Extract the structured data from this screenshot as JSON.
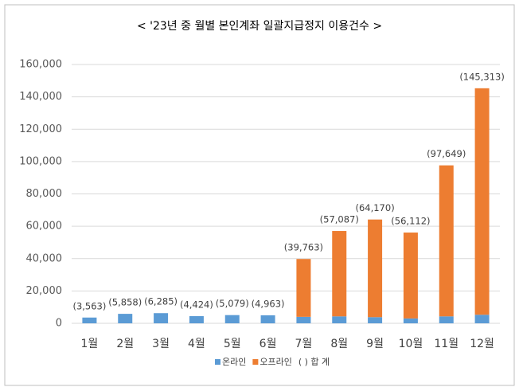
{
  "chart_data": {
    "type": "stacked-bar",
    "title": "< '23년 중 월별 본인계좌 일괄지급정지 이용건수 >",
    "categories": [
      "1월",
      "2월",
      "3월",
      "4월",
      "5월",
      "6월",
      "7월",
      "8월",
      "9월",
      "10월",
      "11월",
      "12월"
    ],
    "series": [
      {
        "name": "온라인",
        "color": "#5b9bd5",
        "values": [
          3563,
          5858,
          6285,
          4424,
          5079,
          4963,
          4000,
          4300,
          3800,
          3000,
          4300,
          5300
        ]
      },
      {
        "name": "오프라인",
        "color": "#ed7d31",
        "values": [
          0,
          0,
          0,
          0,
          0,
          0,
          35763,
          52787,
          60370,
          53112,
          93349,
          140013
        ]
      }
    ],
    "totals": {
      "name": "( ) 합 계",
      "values": [
        3563,
        5858,
        6285,
        4424,
        5079,
        4963,
        39763,
        57087,
        64170,
        56112,
        97649,
        145313
      ],
      "value_labels": [
        "(3,563)",
        "(5,858)",
        "(6,285)",
        "(4,424)",
        "(5,079)",
        "(4,963)",
        "(39,763)",
        "(57,087)",
        "(64,170)",
        "(56,112)",
        "(97,649)",
        "(145,313)"
      ]
    },
    "ylim": [
      0,
      160000
    ],
    "yticks": [
      0,
      {
        "value": 20000,
        "label": "20,000"
      },
      {
        "value": 40000,
        "label": "40,000"
      },
      {
        "value": 60000,
        "label": "60,000"
      },
      {
        "value": 80000,
        "label": "80,000"
      },
      {
        "value": 100000,
        "label": "100,000"
      },
      {
        "value": 120000,
        "label": "120,000"
      },
      {
        "value": 140000,
        "label": "140,000"
      },
      {
        "value": 160000,
        "label": "160,000"
      }
    ],
    "grid": true
  }
}
